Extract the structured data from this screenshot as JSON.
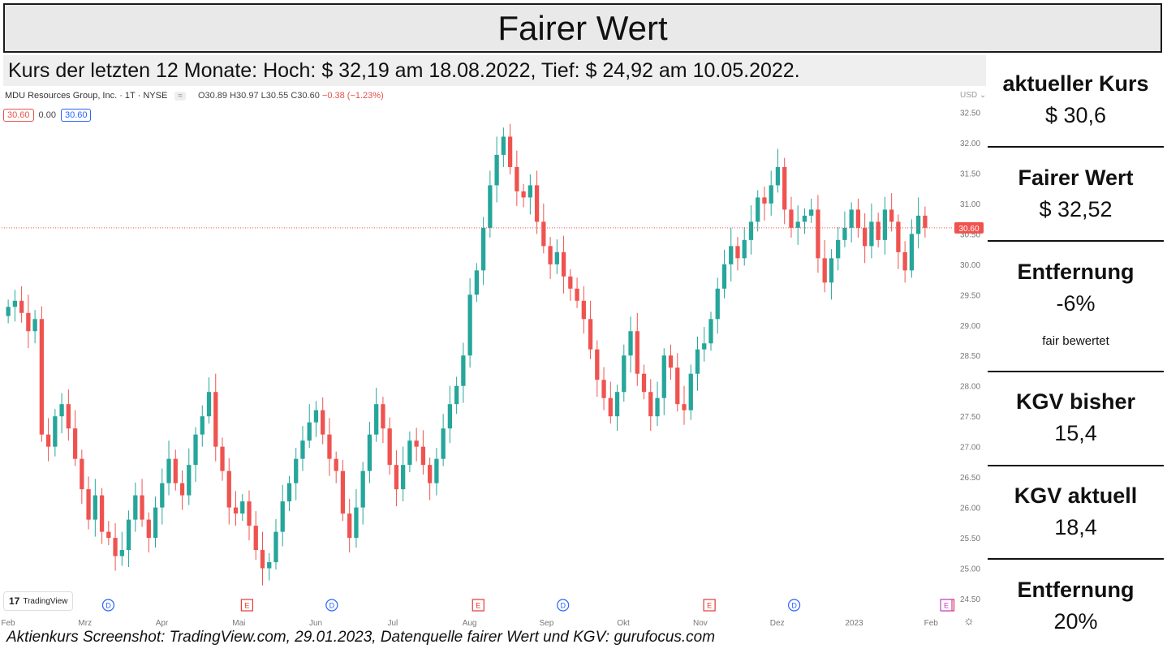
{
  "header": {
    "title": "Fairer Wert"
  },
  "subtitle": "Kurs der letzten 12 Monate: Hoch: $ 32,19 am 18.08.2022, Tief: $ 24,92 am 10.05.2022.",
  "tv": {
    "symbol": "MDU Resources Group, Inc. · 1T · NYSE",
    "pill": "≈",
    "open": "O30.89",
    "high": "H30.97",
    "low": "L30.55",
    "close": "C30.60",
    "change": "−0.38 (−1.23%)",
    "val_bid": "30.60",
    "val_spread": "0.00",
    "val_ask": "30.60",
    "currency": "USD",
    "last_price_label": "30.60",
    "logo_text": "TradingView",
    "logo_mark": "17"
  },
  "caption": "Aktienkurs Screenshot: TradingView.com, 29.01.2023, Datenquelle fairer Wert und KGV: gurufocus.com",
  "panels": [
    {
      "label": "aktueller Kurs",
      "value": "$ 30,6",
      "note": ""
    },
    {
      "label": "Fairer Wert",
      "value": "$ 32,52",
      "note": ""
    },
    {
      "label": "Entfernung",
      "value": "-6%",
      "note": "fair bewertet"
    },
    {
      "label": "KGV bisher",
      "value": "15,4",
      "note": ""
    },
    {
      "label": "KGV aktuell",
      "value": "18,4",
      "note": ""
    },
    {
      "label": "Entfernung",
      "value": "20%",
      "note": ""
    }
  ],
  "colors": {
    "up": "#26a69a",
    "down": "#ef5350",
    "price_line": "#ef5350",
    "dividend": "#2962ff",
    "earnings": "#e53935",
    "next_earnings": "#c040c0"
  },
  "chart_data": {
    "type": "candlestick",
    "ylim": [
      24.3,
      32.8
    ],
    "y_ticks": [
      "32.50",
      "32.00",
      "31.50",
      "31.00",
      "30.50",
      "30.00",
      "29.50",
      "29.00",
      "28.50",
      "28.00",
      "27.50",
      "27.00",
      "26.50",
      "26.00",
      "25.50",
      "25.00",
      "24.50"
    ],
    "x_ticks": [
      "Feb",
      "Mrz",
      "Apr",
      "Mai",
      "Jun",
      "Jul",
      "Aug",
      "Sep",
      "Okt",
      "Nov",
      "Dez",
      "2023",
      "Feb"
    ],
    "last_price": 30.6,
    "events": [
      {
        "type": "D",
        "tick_month": 1.3
      },
      {
        "type": "E",
        "tick_month": 3.1
      },
      {
        "type": "D",
        "tick_month": 4.2
      },
      {
        "type": "E",
        "tick_month": 6.1
      },
      {
        "type": "D",
        "tick_month": 7.2
      },
      {
        "type": "E",
        "tick_month": 9.1
      },
      {
        "type": "D",
        "tick_month": 10.2
      },
      {
        "type": "E",
        "tick_month": 12.2
      }
    ],
    "close_series": [
      29.3,
      29.4,
      29.2,
      28.9,
      29.1,
      27.2,
      27.0,
      27.5,
      27.7,
      27.3,
      26.8,
      26.3,
      25.8,
      26.2,
      25.6,
      25.5,
      25.2,
      25.3,
      25.8,
      26.2,
      25.8,
      25.5,
      26.0,
      26.4,
      26.8,
      26.4,
      26.2,
      26.7,
      27.2,
      27.5,
      27.9,
      27.0,
      26.6,
      26.0,
      25.9,
      26.1,
      25.7,
      25.3,
      25.0,
      25.1,
      25.6,
      26.1,
      26.4,
      26.8,
      27.1,
      27.4,
      27.6,
      27.2,
      26.8,
      26.6,
      25.9,
      25.5,
      26.0,
      26.6,
      27.2,
      27.7,
      27.3,
      26.7,
      26.3,
      26.7,
      27.1,
      27.0,
      26.7,
      26.4,
      26.8,
      27.3,
      27.7,
      28.0,
      28.5,
      29.5,
      29.9,
      30.6,
      31.3,
      31.8,
      32.1,
      31.6,
      31.2,
      31.1,
      31.3,
      30.7,
      30.3,
      30.0,
      30.2,
      29.8,
      29.6,
      29.4,
      29.1,
      28.6,
      28.1,
      27.8,
      27.5,
      27.9,
      28.5,
      28.9,
      28.2,
      27.9,
      27.5,
      27.8,
      28.5,
      28.3,
      27.7,
      27.6,
      28.2,
      28.6,
      28.7,
      29.1,
      29.6,
      30.0,
      30.3,
      30.1,
      30.4,
      30.7,
      31.1,
      31.0,
      31.3,
      31.6,
      30.9,
      30.6,
      30.7,
      30.8,
      30.9,
      30.1,
      29.7,
      30.1,
      30.4,
      30.6,
      30.9,
      30.6,
      30.3,
      30.7,
      30.4,
      30.9,
      30.7,
      30.2,
      29.9,
      30.5,
      30.8,
      30.6
    ]
  }
}
